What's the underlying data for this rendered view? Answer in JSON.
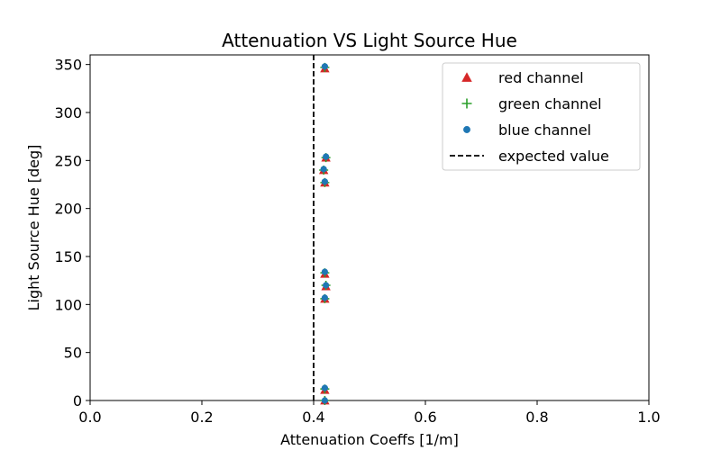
{
  "chart_data": {
    "type": "scatter",
    "title": "Attenuation VS Light Source Hue",
    "xlabel": "Attenuation Coeffs [1/m]",
    "ylabel": "Light Source Hue [deg]",
    "xlim": [
      0.0,
      1.0
    ],
    "ylim": [
      0,
      360
    ],
    "xticks": [
      "0.0",
      "0.2",
      "0.4",
      "0.6",
      "0.8",
      "1.0"
    ],
    "yticks": [
      "0",
      "50",
      "100",
      "150",
      "200",
      "250",
      "300",
      "350"
    ],
    "grid": false,
    "legend_position": "top-right",
    "series": [
      {
        "name": "red channel",
        "marker": "triangle",
        "color": "#d62728",
        "points": [
          {
            "x": 0.42,
            "y": 0
          },
          {
            "x": 0.42,
            "y": 11
          },
          {
            "x": 0.42,
            "y": 106
          },
          {
            "x": 0.422,
            "y": 119
          },
          {
            "x": 0.42,
            "y": 132
          },
          {
            "x": 0.42,
            "y": 227
          },
          {
            "x": 0.418,
            "y": 240
          },
          {
            "x": 0.422,
            "y": 253
          },
          {
            "x": 0.42,
            "y": 346
          }
        ]
      },
      {
        "name": "green channel",
        "marker": "plus",
        "color": "#2ca02c",
        "points": [
          {
            "x": 0.42,
            "y": 0
          },
          {
            "x": 0.42,
            "y": 12
          },
          {
            "x": 0.42,
            "y": 106
          },
          {
            "x": 0.422,
            "y": 120
          },
          {
            "x": 0.42,
            "y": 133
          },
          {
            "x": 0.42,
            "y": 227
          },
          {
            "x": 0.418,
            "y": 240
          },
          {
            "x": 0.422,
            "y": 253
          },
          {
            "x": 0.42,
            "y": 347
          }
        ]
      },
      {
        "name": "blue channel",
        "marker": "circle",
        "color": "#1f77b4",
        "points": [
          {
            "x": 0.42,
            "y": 0
          },
          {
            "x": 0.42,
            "y": 13
          },
          {
            "x": 0.42,
            "y": 107
          },
          {
            "x": 0.422,
            "y": 120
          },
          {
            "x": 0.42,
            "y": 134
          },
          {
            "x": 0.42,
            "y": 228
          },
          {
            "x": 0.418,
            "y": 241
          },
          {
            "x": 0.422,
            "y": 254
          },
          {
            "x": 0.42,
            "y": 348
          }
        ]
      }
    ],
    "reference_line": {
      "name": "expected value",
      "x": 0.4,
      "style": "dashed",
      "color": "#000000"
    }
  }
}
